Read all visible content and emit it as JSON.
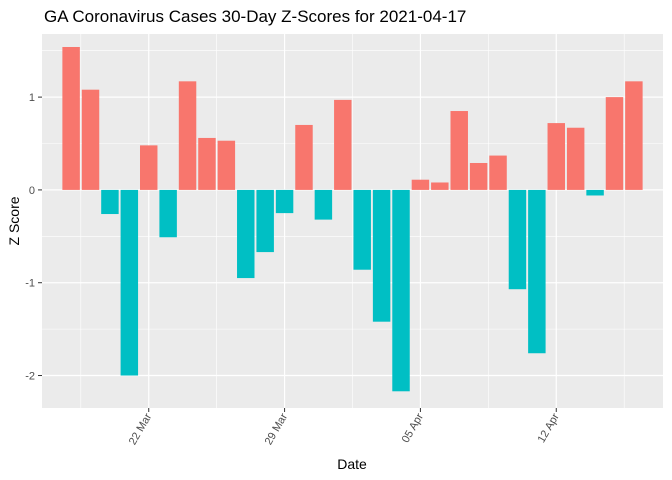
{
  "chart_data": {
    "type": "bar",
    "title": "GA Coronavirus Cases 30-Day Z-Scores for 2021-04-17",
    "xlabel": "Date",
    "ylabel": "Z Score",
    "ylim": [
      -2.35,
      1.68
    ],
    "yticks": [
      -2,
      -1,
      0,
      1
    ],
    "ytick_labels": [
      "-2",
      "-1",
      "0",
      "1"
    ],
    "x_start_date": "2021-03-18",
    "xticks": [
      {
        "label": "22 Mar",
        "day_index": 4
      },
      {
        "label": "29 Mar",
        "day_index": 11
      },
      {
        "label": "05 Apr",
        "day_index": 18
      },
      {
        "label": "12 Apr",
        "day_index": 25
      }
    ],
    "x_minor_day_indices": [
      0.5,
      7.5,
      14.5,
      21.5,
      28.5
    ],
    "xlim": [
      -1.5,
      30.5
    ],
    "positive_color": "#F8766D",
    "negative_color": "#00BFC4",
    "values": [
      1.54,
      1.08,
      -0.26,
      -2.0,
      0.48,
      -0.51,
      1.17,
      0.56,
      0.53,
      -0.95,
      -0.67,
      -0.25,
      0.7,
      -0.32,
      0.97,
      -0.86,
      -1.42,
      -2.17,
      0.11,
      0.08,
      0.85,
      0.29,
      0.37,
      -1.07,
      -1.76,
      0.72,
      0.67,
      -0.06,
      1.0,
      1.17
    ]
  }
}
